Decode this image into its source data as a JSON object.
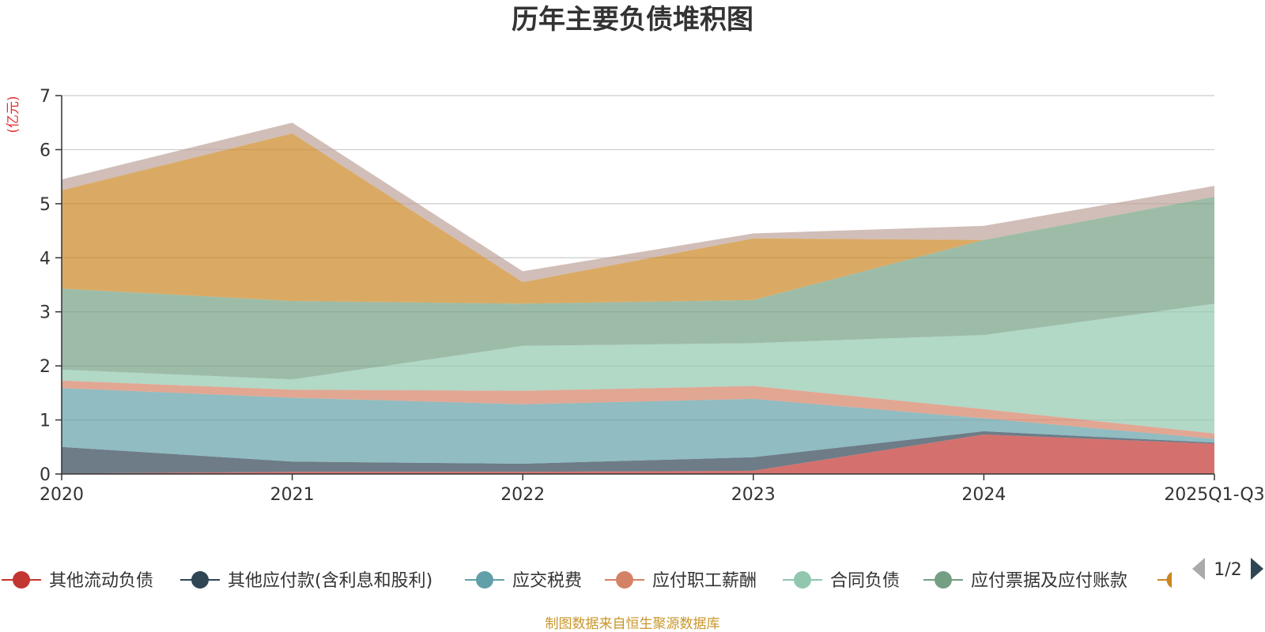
{
  "chart_data": {
    "type": "area",
    "stacked": true,
    "title": "历年主要负债堆积图",
    "ylabel": "(亿元)",
    "ylim": [
      0,
      7
    ],
    "yticks": [
      0,
      1,
      2,
      3,
      4,
      5,
      6,
      7
    ],
    "grid": true,
    "categories": [
      "2020",
      "2021",
      "2022",
      "2023",
      "2024",
      "2025Q1-Q3"
    ],
    "series": [
      {
        "name": "其他流动负债",
        "color": "#c23531",
        "values": [
          0.01,
          0.04,
          0.04,
          0.06,
          0.73,
          0.56
        ]
      },
      {
        "name": "其他应付款(含利息和股利)",
        "color": "#2f4554",
        "values": [
          0.49,
          0.19,
          0.15,
          0.25,
          0.06,
          0.02
        ]
      },
      {
        "name": "应交税费",
        "color": "#61a0a8",
        "values": [
          1.09,
          1.18,
          1.1,
          1.08,
          0.24,
          0.07
        ]
      },
      {
        "name": "应付职工薪酬",
        "color": "#d48265",
        "values": [
          0.14,
          0.15,
          0.25,
          0.24,
          0.17,
          0.1
        ]
      },
      {
        "name": "合同负债",
        "color": "#91c7ae",
        "values": [
          0.2,
          0.19,
          0.83,
          0.79,
          1.37,
          2.4
        ]
      },
      {
        "name": "应付票据及应付账款",
        "color": "#749f83",
        "values": [
          1.5,
          1.45,
          0.78,
          0.8,
          1.76,
          1.98
        ]
      },
      {
        "name": "",
        "color": "#ca8622",
        "values": [
          1.82,
          3.1,
          0.4,
          1.14,
          0,
          0
        ]
      },
      {
        "name": "",
        "color": "#bda29a",
        "values": [
          0.2,
          0.2,
          0.2,
          0.09,
          0.26,
          0.2
        ]
      }
    ],
    "legend_placement": "bottom",
    "legend_page": "1/2"
  },
  "footer": {
    "source": "制图数据来自恒生聚源数据库"
  }
}
